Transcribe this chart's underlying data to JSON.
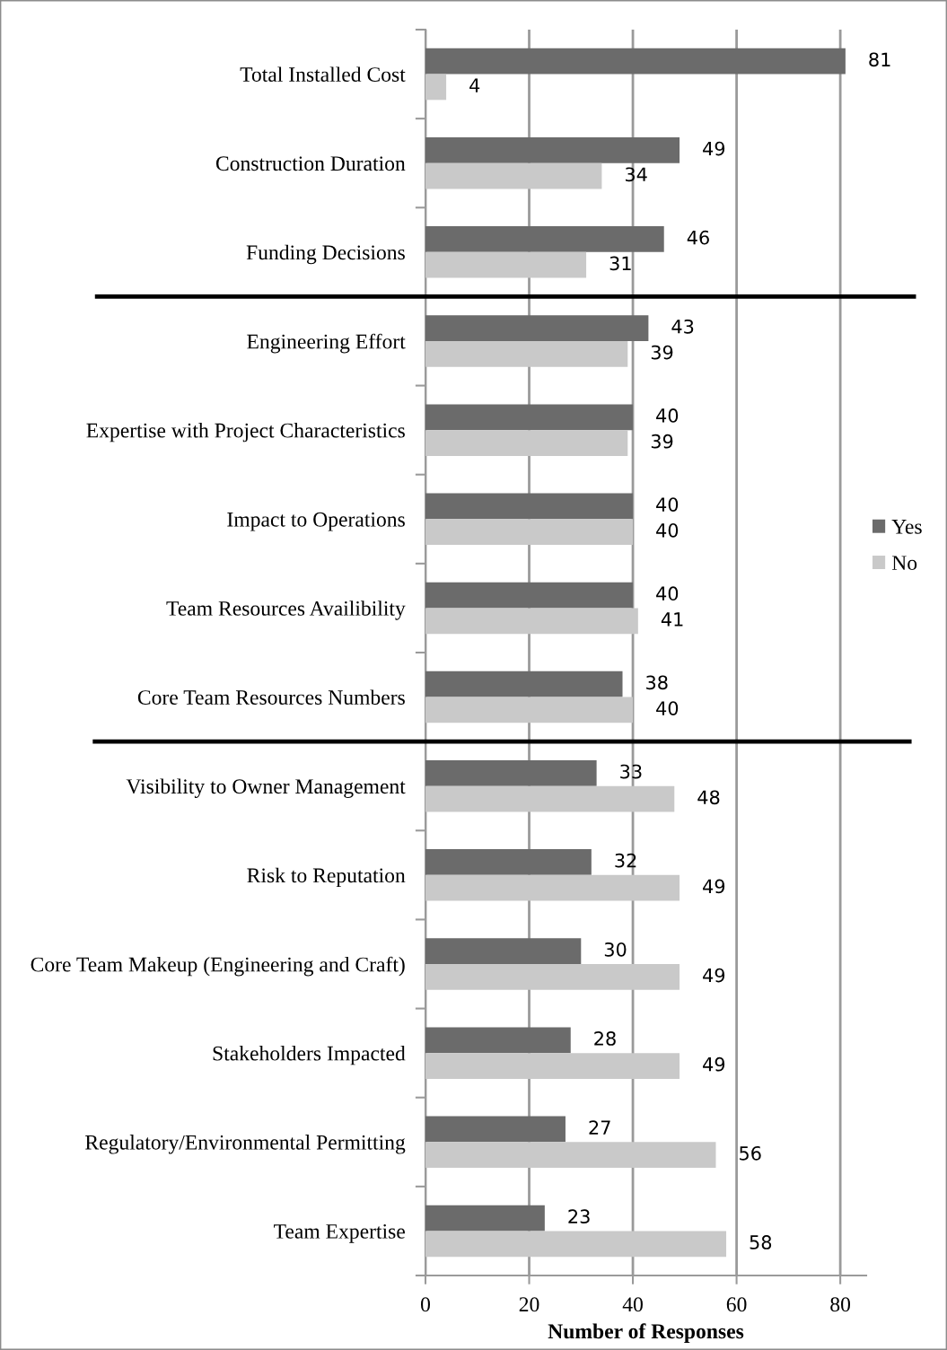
{
  "chart_data": {
    "type": "bar",
    "orientation": "horizontal",
    "categories": [
      "Total Installed Cost",
      "Construction Duration",
      "Funding Decisions",
      "Engineering Effort",
      "Expertise with Project Characteristics",
      "Impact to Operations",
      "Team Resources Availibility",
      "Core Team Resources Numbers",
      "Visibility to Owner Management",
      "Risk to Reputation",
      "Core Team Makeup (Engineering and Craft)",
      "Stakeholders Impacted",
      "Regulatory/Environmental Permitting",
      "Team Expertise"
    ],
    "series": [
      {
        "name": "Yes",
        "color": "#6b6b6b",
        "values": [
          81,
          49,
          46,
          43,
          40,
          40,
          40,
          38,
          33,
          32,
          30,
          28,
          27,
          23
        ]
      },
      {
        "name": "No",
        "color": "#c9c9c9",
        "values": [
          4,
          34,
          31,
          39,
          39,
          40,
          41,
          40,
          48,
          49,
          49,
          49,
          56,
          58
        ]
      }
    ],
    "xlabel": "Number of Responses",
    "xlim": [
      0,
      85
    ],
    "xticks": [
      0,
      20,
      40,
      60,
      80
    ],
    "grid": "x",
    "legend": "right",
    "data_labels": true
  }
}
